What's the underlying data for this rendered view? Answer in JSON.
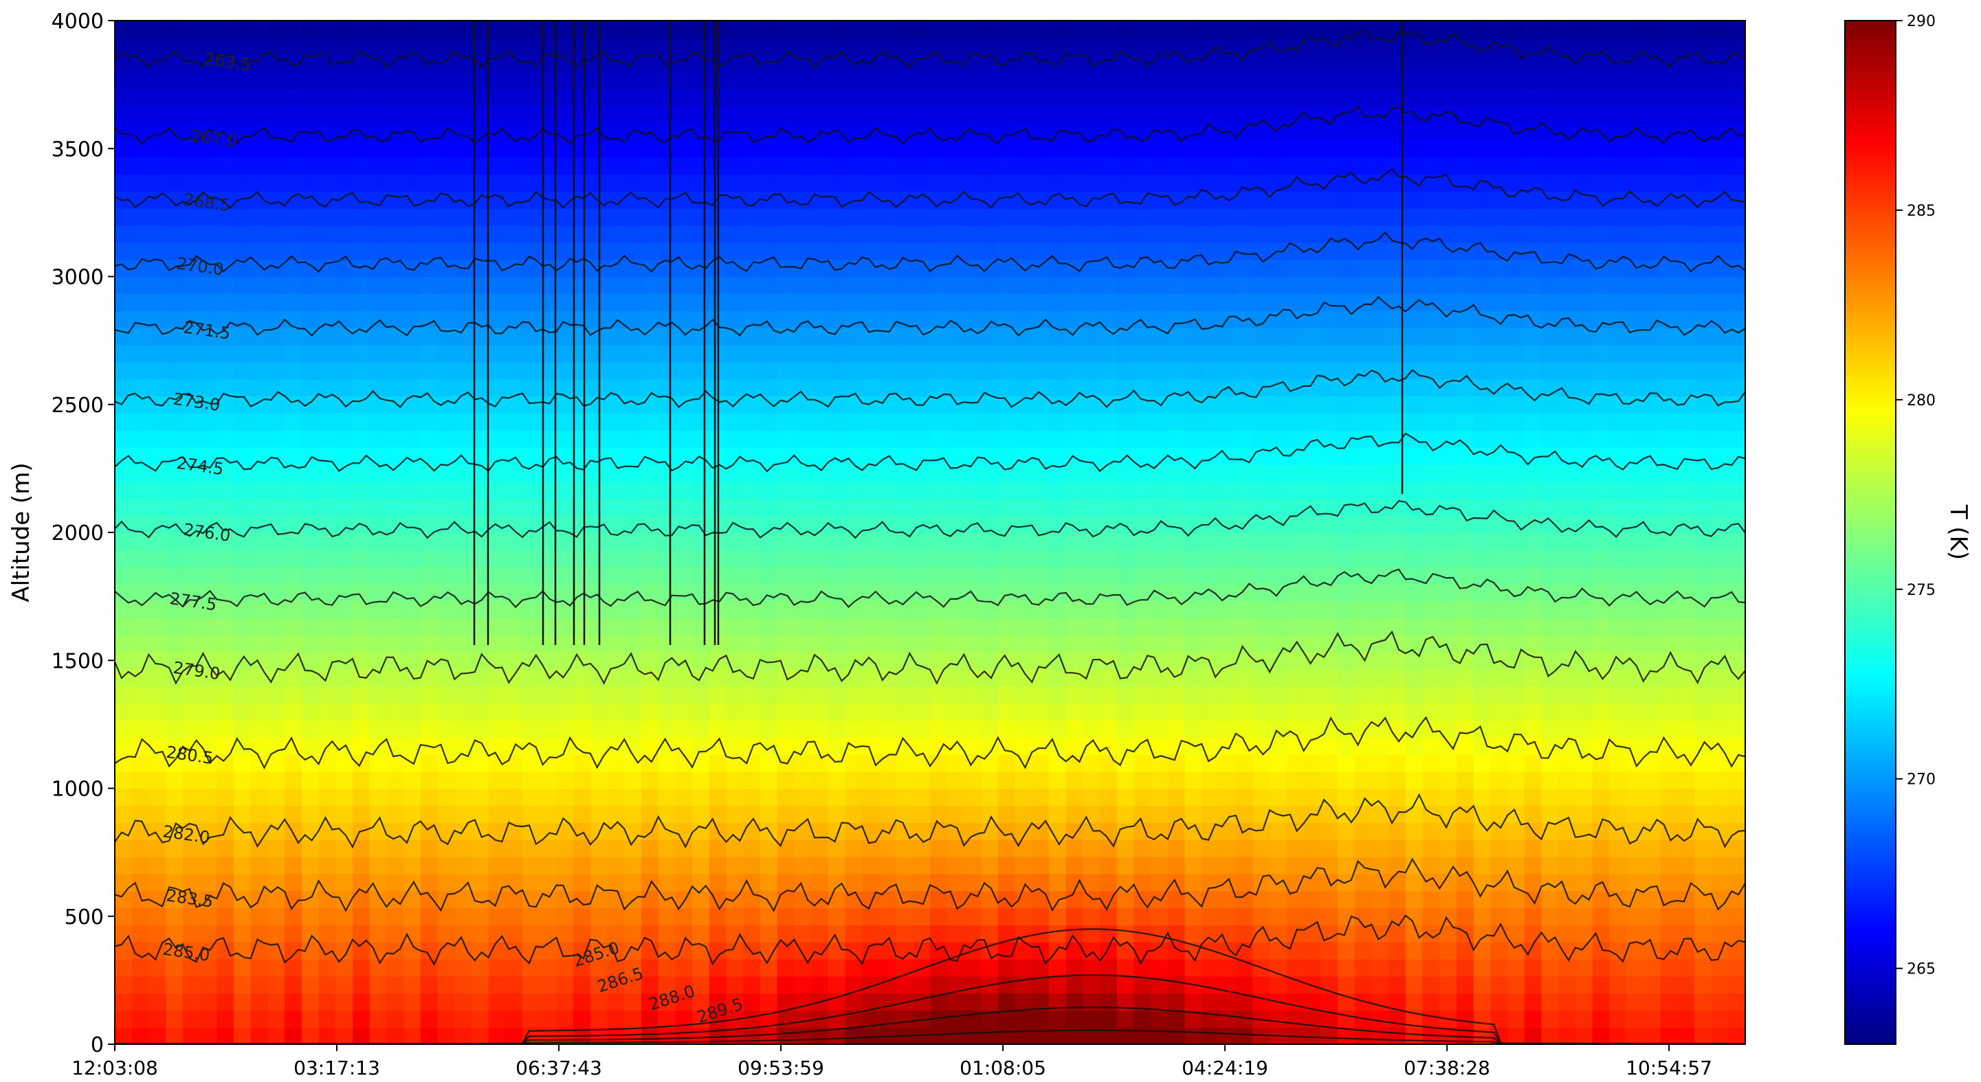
{
  "chart_data": {
    "type": "heatmap",
    "title": "",
    "xlabel": "",
    "ylabel": "Altitude (m)",
    "colorbar_label": "T (K)",
    "colormap": "jet",
    "colorbar_range": [
      263,
      290
    ],
    "colorbar_ticks": [
      "265",
      "270",
      "275",
      "280",
      "285",
      "290"
    ],
    "x_tick_labels": [
      "12:03:08",
      "03:17:13",
      "06:37:43",
      "09:53:59",
      "01:08:05",
      "04:24:19",
      "07:38:28",
      "10:54:57"
    ],
    "y_ticks": [
      0,
      500,
      1000,
      1500,
      2000,
      2500,
      3000,
      3500,
      4000
    ],
    "y_tick_labels": [
      "0",
      "500",
      "1000",
      "1500",
      "2000",
      "2500",
      "3000",
      "3500",
      "4000"
    ],
    "ylim": [
      0,
      4000
    ],
    "grid": false,
    "colorbar_position": "right",
    "contour_levels": [
      {
        "label": "263.5",
        "base_altitude": 3850
      },
      {
        "label": "267.0",
        "base_altitude": 3550
      },
      {
        "label": "268.5",
        "base_altitude": 3300
      },
      {
        "label": "270.0",
        "base_altitude": 3050
      },
      {
        "label": "271.5",
        "base_altitude": 2800
      },
      {
        "label": "273.0",
        "base_altitude": 2520
      },
      {
        "label": "274.5",
        "base_altitude": 2270
      },
      {
        "label": "276.0",
        "base_altitude": 2010
      },
      {
        "label": "277.5",
        "base_altitude": 1740
      },
      {
        "label": "279.0",
        "base_altitude": 1470
      },
      {
        "label": "280.5",
        "base_altitude": 1140
      },
      {
        "label": "282.0",
        "base_altitude": 830
      },
      {
        "label": "283.5",
        "base_altitude": 580
      },
      {
        "label": "285.0",
        "base_altitude": 370
      },
      {
        "label": "285.0",
        "base_altitude": 250
      },
      {
        "label": "286.5",
        "base_altitude": 150
      },
      {
        "label": "288.0",
        "base_altitude": 80
      },
      {
        "label": "289.5",
        "base_altitude": 30
      }
    ]
  }
}
